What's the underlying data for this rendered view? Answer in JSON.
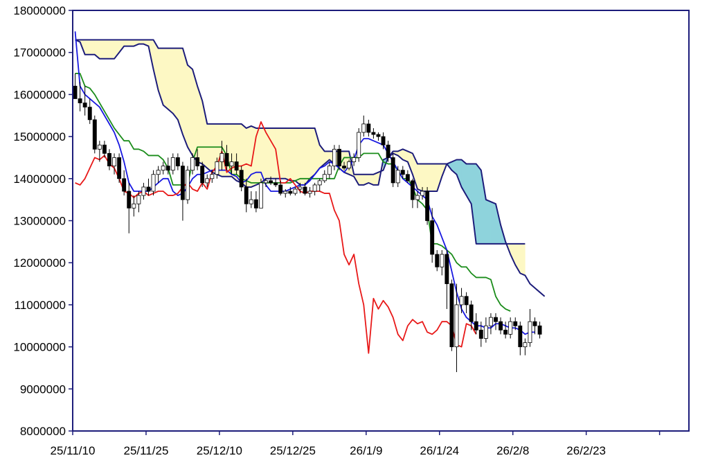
{
  "chart_data": {
    "type": "candlestick-ichimoku",
    "title": "",
    "xlabel": "",
    "ylabel": "",
    "ylim": [
      8000000,
      18000000
    ],
    "y_ticks": [
      "18000000",
      "17000000",
      "16000000",
      "15000000",
      "14000000",
      "13000000",
      "12000000",
      "11000000",
      "10000000",
      "9000000",
      "8000000"
    ],
    "y_tick_values": [
      18000000,
      17000000,
      16000000,
      15000000,
      14000000,
      13000000,
      12000000,
      11000000,
      10000000,
      9000000,
      8000000
    ],
    "x_ticks": [
      "25/11/10",
      "25/11/25",
      "25/12/10",
      "25/12/25",
      "26/1/9",
      "26/1/24",
      "26/2/8",
      "26/2/23"
    ],
    "grid": false,
    "legend": "none",
    "total_slots": 126,
    "colors": {
      "tenkan": "#1818e0",
      "kijun": "#1a8c1a",
      "chikou": "#e81818",
      "senkou_a": "#1c1c7a",
      "senkou_b": "#1c1c7a",
      "cloud_bull": "#fdf8c4",
      "cloud_bear": "#8ed3dc",
      "axis": "#1c1c7a",
      "candle_up": "#ffffff",
      "candle_down": "#000000"
    },
    "candles": [
      [
        16200000,
        16500000,
        15900000,
        15900000
      ],
      [
        15900000,
        16300000,
        15600000,
        15800000
      ],
      [
        15800000,
        16200000,
        15500000,
        15700000
      ],
      [
        15700000,
        15900000,
        15300000,
        15400000
      ],
      [
        15400000,
        15500000,
        14600000,
        14700000
      ],
      [
        14700000,
        14900000,
        14400000,
        14800000
      ],
      [
        14800000,
        14900000,
        14500000,
        14600000
      ],
      [
        14600000,
        14700000,
        14200000,
        14300000
      ],
      [
        14300000,
        14600000,
        14100000,
        14500000
      ],
      [
        14500000,
        14600000,
        13900000,
        14000000
      ],
      [
        14000000,
        14200000,
        13600000,
        13700000
      ],
      [
        13700000,
        13900000,
        12700000,
        13300000
      ],
      [
        13300000,
        13600000,
        13100000,
        13400000
      ],
      [
        13400000,
        13700000,
        13200000,
        13600000
      ],
      [
        13600000,
        13900000,
        13500000,
        13800000
      ],
      [
        13800000,
        14000000,
        13600000,
        13700000
      ],
      [
        13700000,
        14200000,
        13600000,
        14100000
      ],
      [
        14100000,
        14300000,
        13900000,
        14200000
      ],
      [
        14200000,
        14400000,
        14100000,
        14300000
      ],
      [
        14300000,
        14500000,
        14100000,
        14200000
      ],
      [
        14200000,
        14600000,
        14100000,
        14500000
      ],
      [
        14500000,
        14600000,
        14200000,
        14300000
      ],
      [
        14300000,
        14400000,
        13000000,
        13500000
      ],
      [
        13500000,
        14300000,
        13400000,
        14200000
      ],
      [
        14200000,
        14600000,
        14100000,
        14500000
      ],
      [
        14500000,
        14700000,
        14200000,
        14300000
      ],
      [
        14300000,
        14400000,
        13800000,
        13900000
      ],
      [
        13900000,
        14100000,
        13800000,
        14000000
      ],
      [
        14000000,
        14200000,
        13900000,
        14100000
      ],
      [
        14100000,
        14500000,
        14000000,
        14400000
      ],
      [
        14400000,
        14900000,
        14200000,
        14600000
      ],
      [
        14600000,
        14800000,
        14200000,
        14300000
      ],
      [
        14300000,
        14600000,
        14100000,
        14400000
      ],
      [
        14400000,
        14600000,
        14100000,
        14200000
      ],
      [
        14200000,
        14300000,
        13700000,
        13800000
      ],
      [
        13800000,
        14000000,
        13200000,
        13400000
      ],
      [
        13400000,
        13700000,
        13300000,
        13500000
      ],
      [
        13500000,
        13700000,
        13200000,
        13300000
      ],
      [
        13300000,
        14000000,
        13300000,
        13900000
      ],
      [
        13900000,
        14000000,
        13800000,
        13950000
      ],
      [
        13950000,
        14050000,
        13850000,
        13900000
      ],
      [
        13900000,
        14000000,
        13800000,
        13850000
      ],
      [
        13850000,
        13950000,
        13600000,
        13650000
      ],
      [
        13650000,
        13750000,
        13550000,
        13700000
      ],
      [
        13700000,
        13800000,
        13600000,
        13650000
      ],
      [
        13650000,
        13800000,
        13600000,
        13750000
      ],
      [
        13750000,
        13900000,
        13650000,
        13800000
      ],
      [
        13800000,
        13900000,
        13600000,
        13650000
      ],
      [
        13650000,
        13800000,
        13550000,
        13700000
      ],
      [
        13700000,
        13900000,
        13600000,
        13850000
      ],
      [
        13850000,
        14000000,
        13700000,
        13950000
      ],
      [
        13950000,
        14200000,
        13900000,
        14100000
      ],
      [
        14100000,
        14400000,
        14000000,
        14300000
      ],
      [
        14300000,
        14800000,
        14200000,
        14700000
      ],
      [
        14700000,
        14800000,
        14200000,
        14300000
      ],
      [
        14300000,
        14400000,
        14200000,
        14250000
      ],
      [
        14250000,
        14450000,
        14200000,
        14400000
      ],
      [
        14400000,
        14600000,
        14300000,
        14500000
      ],
      [
        14500000,
        15200000,
        14400000,
        15100000
      ],
      [
        15100000,
        15500000,
        15000000,
        15300000
      ],
      [
        15300000,
        15400000,
        15000000,
        15100000
      ],
      [
        15100000,
        15200000,
        14950000,
        15050000
      ],
      [
        15050000,
        15100000,
        14900000,
        15000000
      ],
      [
        15000000,
        15100000,
        14700000,
        14800000
      ],
      [
        14800000,
        14900000,
        14400000,
        14500000
      ],
      [
        14500000,
        14600000,
        13800000,
        13900000
      ],
      [
        13900000,
        14300000,
        13800000,
        14200000
      ],
      [
        14200000,
        14300000,
        14000000,
        14100000
      ],
      [
        14100000,
        14200000,
        13900000,
        13950000
      ],
      [
        13950000,
        14000000,
        13300000,
        13500000
      ],
      [
        13500000,
        13700000,
        13300000,
        13600000
      ],
      [
        13600000,
        13800000,
        13500000,
        13700000
      ],
      [
        13700000,
        13800000,
        12900000,
        13000000
      ],
      [
        13000000,
        13300000,
        12000000,
        12200000
      ],
      [
        12200000,
        12300000,
        11800000,
        11900000
      ],
      [
        11900000,
        12300000,
        11700000,
        12200000
      ],
      [
        12200000,
        12300000,
        10900000,
        11500000
      ],
      [
        11500000,
        11600000,
        9900000,
        10000000
      ],
      [
        10000000,
        11500000,
        9400000,
        11000000
      ],
      [
        11000000,
        11400000,
        10800000,
        11200000
      ],
      [
        11200000,
        11300000,
        10800000,
        11000000
      ],
      [
        11000000,
        11100000,
        10400000,
        10600000
      ],
      [
        10600000,
        10800000,
        10300000,
        10400000
      ],
      [
        10400000,
        10600000,
        10000000,
        10200000
      ],
      [
        10200000,
        10700000,
        10100000,
        10500000
      ],
      [
        10500000,
        10800000,
        10300000,
        10700000
      ],
      [
        10700000,
        10800000,
        10400000,
        10600000
      ],
      [
        10600000,
        10700000,
        10300000,
        10400000
      ],
      [
        10400000,
        10600000,
        10200000,
        10300000
      ],
      [
        10300000,
        10700000,
        10200000,
        10600000
      ],
      [
        10600000,
        10700000,
        10400000,
        10500000
      ],
      [
        10500000,
        10600000,
        9800000,
        10000000
      ],
      [
        10000000,
        10200000,
        9800000,
        10100000
      ],
      [
        10100000,
        10900000,
        10000000,
        10600000
      ],
      [
        10600000,
        10700000,
        10300000,
        10500000
      ],
      [
        10500000,
        10600000,
        10200000,
        10300000
      ]
    ],
    "series": [
      {
        "key": "tenkan",
        "start": 0,
        "values": [
          17500000,
          16200000,
          16000000,
          15900000,
          15800000,
          15700000,
          15500000,
          15300000,
          15100000,
          14800000,
          14400000,
          13900000,
          13700000,
          13700000,
          13700000,
          13700000,
          13800000,
          13900000,
          14000000,
          14000000,
          13700000,
          13600000,
          13650000,
          13800000,
          14000000,
          14100000,
          14100000,
          14150000,
          14200000,
          14200000,
          14200000,
          14200000,
          14100000,
          14050000,
          13900000,
          13950000,
          14100000,
          14150000,
          14150000,
          13850000,
          13700000,
          13700000,
          13700000,
          13700000,
          13750000,
          13800000,
          13850000,
          13850000,
          13950000,
          14100000,
          14250000,
          14300000,
          14400000,
          14350000,
          14250000,
          14150000,
          14300000,
          14450000,
          14800000,
          14950000,
          14950000,
          14900000,
          14850000,
          14800000,
          14600000,
          14400000,
          14200000,
          14000000,
          13900000,
          13800000,
          13700000,
          13600000,
          13500000,
          13100000,
          12900000,
          12600000,
          12300000,
          11800000,
          11300000,
          10900000,
          10700000,
          10600000,
          10500000,
          10500000,
          10450000,
          10450000,
          10550000,
          10550000,
          10500000,
          10450000,
          10450000,
          10400000,
          10300000,
          10350000,
          10350000
        ]
      },
      {
        "key": "kijun",
        "start": 0,
        "values": [
          16500000,
          16500000,
          16200000,
          16150000,
          16000000,
          15800000,
          15600000,
          15400000,
          15200000,
          15050000,
          14900000,
          14900000,
          14700000,
          14700000,
          14650000,
          14550000,
          14550000,
          14550000,
          14450000,
          14250000,
          13850000,
          13850000,
          13850000,
          13850000,
          14400000,
          14750000,
          14750000,
          14750000,
          14750000,
          14750000,
          14750000,
          14550000,
          14100000,
          14100000,
          14000000,
          13950000,
          13900000,
          13900000,
          13900000,
          13900000,
          13900000,
          13900000,
          13900000,
          13900000,
          13900000,
          13950000,
          14000000,
          14000000,
          14000000,
          14000000,
          14000000,
          14000000,
          14000000,
          14000000,
          14300000,
          14500000,
          14500000,
          14500000,
          14500000,
          14600000,
          14600000,
          14600000,
          14600000,
          14400000,
          14350000,
          14350000,
          14200000,
          14000000,
          14000000,
          13800000,
          13500000,
          13400000,
          13250000,
          12450000,
          12450000,
          12400000,
          12300000,
          12200000,
          12000000,
          11900000,
          11900000,
          11750000,
          11650000,
          11650000,
          11650000,
          11600000,
          11200000,
          11000000,
          10900000,
          10850000
        ]
      },
      {
        "key": "chikou",
        "start": 0,
        "values": [
          13900000,
          13850000,
          14000000,
          14250000,
          14500000,
          14450000,
          14550000,
          14350000,
          14250000,
          14000000,
          13700000,
          13650000,
          13550000,
          13650000,
          13700000,
          13600000,
          13650000,
          13700000,
          13700000,
          13600000,
          13600000,
          13650000,
          13800000,
          13900000,
          13750000,
          13700000,
          13900000,
          13750000,
          14150000,
          14300000,
          14650000,
          14150000,
          14250000,
          14300000,
          14300000,
          14350000,
          14300000,
          15000000,
          15350000,
          15100000,
          14900000,
          14700000,
          13900000,
          13900000,
          14000000,
          13850000,
          13700000,
          13650000,
          13700000,
          13700000,
          13700000,
          13650000,
          13650000,
          13250000,
          13000000,
          12200000,
          11950000,
          12200000,
          11500000,
          11000000,
          9850000,
          11150000,
          10900000,
          11100000,
          10950000,
          10700000,
          10300000,
          10150000,
          10500000,
          10650000,
          10550000,
          10600000,
          10350000,
          10300000,
          10400000,
          10600000,
          10600000,
          10500000,
          10050000,
          10000000,
          10550000,
          10500000,
          10300000
        ]
      },
      {
        "key": "senkou_a",
        "start": 0,
        "values": [
          17300000,
          17250000,
          16950000,
          16950000,
          16950000,
          16850000,
          16850000,
          16850000,
          16850000,
          17000000,
          17150000,
          17150000,
          17150000,
          17200000,
          17200000,
          17150000,
          16600000,
          16100000,
          15750000,
          15650000,
          15550000,
          15400000,
          15050000,
          14750000,
          14550000,
          14400000,
          14350000,
          14250000,
          14150000,
          14100000,
          14050000,
          14050000,
          14050000,
          13950000,
          13900000,
          13800000,
          13800000,
          13850000,
          13900000,
          14000000,
          14000000,
          14000000,
          14000000,
          14000000,
          13950000,
          13950000,
          13850000,
          13850000,
          14000000,
          14100000,
          14250000,
          14350000,
          14450000,
          14350000,
          14250000,
          14150000,
          14100000,
          14050000,
          13850000,
          13850000,
          13900000,
          13850000,
          13850000,
          14450000,
          14500000,
          14600000,
          14550000,
          14450000,
          14400000,
          14100000,
          13750000,
          13700000,
          13700000,
          13700000,
          13700000,
          14050000,
          14350000,
          14400000,
          14450000,
          14450000,
          14350000,
          14350000,
          14350000,
          14200000,
          13500000,
          13450000,
          13400000,
          12900000,
          12500000,
          12200000,
          11950000,
          11750000,
          11700000,
          11500000,
          11400000,
          11300000,
          11200000
        ]
      },
      {
        "key": "senkou_b",
        "start": 0,
        "values": [
          17300000,
          17300000,
          17300000,
          17300000,
          17300000,
          17300000,
          17300000,
          17300000,
          17300000,
          17300000,
          17300000,
          17300000,
          17300000,
          17300000,
          17300000,
          17300000,
          17300000,
          17100000,
          17100000,
          17100000,
          17100000,
          17100000,
          17100000,
          16700000,
          16600000,
          16200000,
          15850000,
          15300000,
          15300000,
          15300000,
          15300000,
          15300000,
          15300000,
          15300000,
          15300000,
          15200000,
          15250000,
          15200000,
          15200000,
          15200000,
          15200000,
          15200000,
          15200000,
          15200000,
          15200000,
          15200000,
          15200000,
          15200000,
          15200000,
          15200000,
          14800000,
          14650000,
          14650000,
          14650000,
          14650000,
          14650000,
          14650000,
          14100000,
          14100000,
          14100000,
          14100000,
          14100000,
          14150000,
          14200000,
          14500000,
          14650000,
          14650000,
          14700000,
          14650000,
          14600000,
          14350000,
          14350000,
          14350000,
          14350000,
          14350000,
          14350000,
          14350000,
          14200000,
          14100000,
          13800000,
          13600000,
          13400000,
          12450000,
          12450000,
          12450000,
          12450000,
          12450000,
          12450000,
          12450000,
          12450000,
          12450000,
          12450000,
          12450000
        ]
      }
    ]
  }
}
